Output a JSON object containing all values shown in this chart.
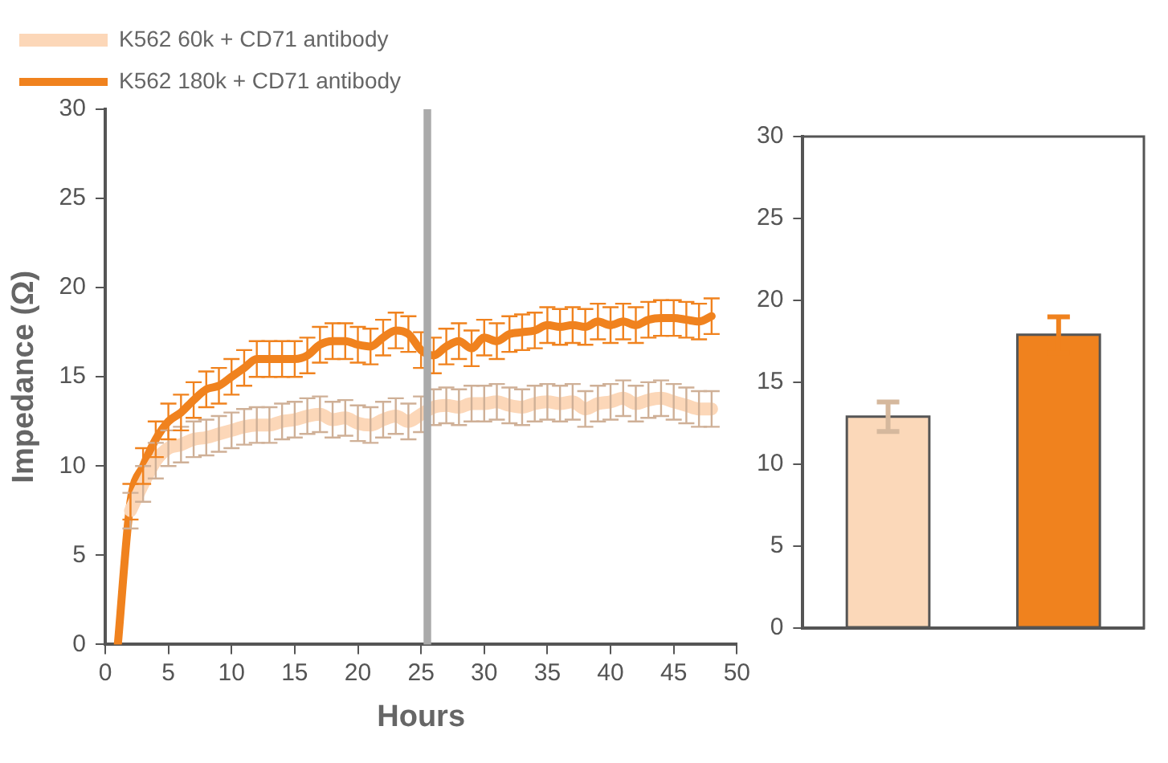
{
  "chart_data": [
    {
      "type": "line",
      "xlabel": "Hours",
      "ylabel": "Impedance (Ω)",
      "xlim": [
        0,
        50
      ],
      "xticks": [
        0,
        5,
        10,
        15,
        20,
        25,
        30,
        35,
        40,
        45,
        50
      ],
      "ylim": [
        0,
        30
      ],
      "yticks": [
        0,
        5,
        10,
        15,
        20,
        25,
        30
      ],
      "grid": false,
      "legend": "top",
      "marker": "none",
      "line_style": "solid",
      "bands": [
        {
          "axis": "x",
          "from": 25.2,
          "to": 25.8,
          "color": "#aaaaaa"
        }
      ],
      "series": [
        {
          "name": "K562 60k + CD71 antibody",
          "color": "#fcd7b8",
          "x": [
            2,
            3,
            4,
            5,
            6,
            7,
            8,
            9,
            10,
            11,
            12,
            13,
            14,
            15,
            16,
            17,
            18,
            19,
            20,
            21,
            22,
            23,
            24,
            25,
            26,
            27,
            28,
            29,
            30,
            31,
            32,
            33,
            34,
            35,
            36,
            37,
            38,
            39,
            40,
            41,
            42,
            43,
            44,
            45,
            46,
            47,
            48
          ],
          "values": [
            7.5,
            9,
            10.3,
            11,
            11.2,
            11.5,
            11.6,
            11.8,
            12,
            12.2,
            12.3,
            12.3,
            12.5,
            12.6,
            12.8,
            12.9,
            12.6,
            12.7,
            12.4,
            12.3,
            12.6,
            12.8,
            12.5,
            12.9,
            13.3,
            13.4,
            13.3,
            13.5,
            13.5,
            13.6,
            13.4,
            13.3,
            13.5,
            13.6,
            13.5,
            13.6,
            13.2,
            13.5,
            13.6,
            13.8,
            13.5,
            13.7,
            13.8,
            13.6,
            13.4,
            13.2,
            13.2
          ],
          "errors": [
            1,
            1,
            1,
            1,
            1,
            1,
            1,
            1,
            1,
            1,
            1,
            1,
            1,
            1,
            1,
            1,
            1,
            1,
            1,
            1,
            1,
            1,
            1,
            1,
            1,
            1,
            1,
            1,
            1,
            1,
            1,
            1,
            1,
            1,
            1,
            1,
            1,
            1,
            1,
            1,
            1,
            1,
            1,
            1,
            1,
            1,
            1
          ]
        },
        {
          "name": "K562 180k + CD71 antibody",
          "color": "#f0821e",
          "x": [
            1,
            2,
            3,
            4,
            5,
            6,
            7,
            8,
            9,
            10,
            11,
            12,
            13,
            14,
            15,
            16,
            17,
            18,
            19,
            20,
            21,
            22,
            23,
            24,
            25,
            26,
            27,
            28,
            29,
            30,
            31,
            32,
            33,
            34,
            35,
            36,
            37,
            38,
            39,
            40,
            41,
            42,
            43,
            44,
            45,
            46,
            47,
            48
          ],
          "values": [
            0,
            8,
            10,
            11.5,
            12.5,
            13,
            13.7,
            14.3,
            14.5,
            15,
            15.5,
            16,
            16,
            16,
            16,
            16.2,
            16.8,
            17,
            17,
            16.8,
            16.7,
            17.2,
            17.6,
            17.4,
            16.5,
            16.2,
            16.7,
            17,
            16.6,
            17.2,
            17,
            17.4,
            17.5,
            17.6,
            17.9,
            17.8,
            17.9,
            17.8,
            18.1,
            17.9,
            18.1,
            17.9,
            18.2,
            18.3,
            18.3,
            18.2,
            18.1,
            18.4
          ],
          "errors": [
            null,
            1,
            1,
            1,
            1,
            1,
            1,
            1,
            1,
            1,
            1,
            1,
            1,
            1,
            1,
            1,
            1,
            1,
            1,
            1,
            1,
            1,
            1,
            1,
            1,
            1,
            1,
            1,
            1,
            1,
            1,
            1,
            1,
            1,
            1,
            1,
            1,
            1,
            1,
            1,
            1,
            1,
            1,
            1,
            1,
            1,
            1,
            1
          ]
        }
      ]
    },
    {
      "type": "bar",
      "categories": [
        null,
        null
      ],
      "values": [
        12.9,
        17.9
      ],
      "colors": [
        "#fbd8b9",
        "#f0821e"
      ],
      "errors": [
        0.9,
        1.1
      ],
      "ylim": [
        0,
        30
      ],
      "yticks": [
        0,
        5,
        10,
        15,
        20,
        25,
        30
      ],
      "grid": false
    }
  ]
}
